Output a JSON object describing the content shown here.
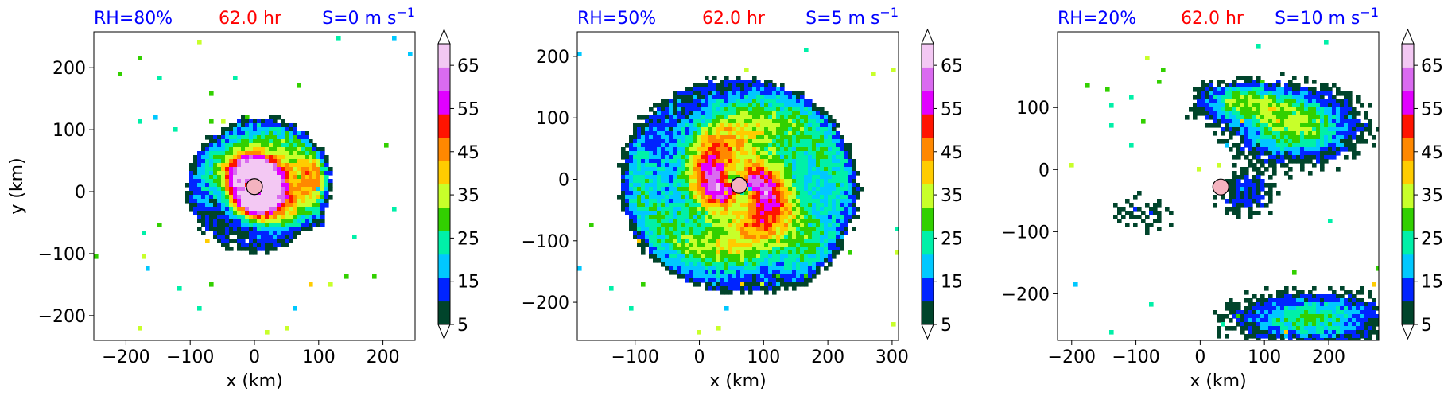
{
  "figure": {
    "cbar_colors": [
      "#00442b",
      "#0024ff",
      "#00c8ff",
      "#00f0a8",
      "#32d000",
      "#c8ff2a",
      "#ffcc00",
      "#ff8800",
      "#ff1400",
      "#e100ff",
      "#da6bf0",
      "#f3c8f3"
    ],
    "cbar_extend_color": "#ffffff",
    "center_marker_color": "#f4b3bf",
    "title_blue": "#0000ff",
    "title_red": "#ff0000"
  },
  "chart_data": [
    {
      "type": "heatmap",
      "title_left": "RH=80%",
      "title_center": "62.0 hr",
      "title_right_prefix": "S=0 m s",
      "title_right_sup": "−1",
      "xlabel": "x (km)",
      "ylabel": "y (km)",
      "xlim": [
        -250,
        250
      ],
      "ylim": [
        -240,
        258
      ],
      "xticks": [
        -200,
        -100,
        0,
        100,
        200
      ],
      "xtick_labels": [
        "−200",
        "−100",
        "0",
        "100",
        "200"
      ],
      "yticks": [
        -200,
        -100,
        0,
        100,
        200
      ],
      "ytick_labels": [
        "−200",
        "−100",
        "0",
        "100",
        "200"
      ],
      "center": [
        0,
        8
      ],
      "colorbar": {
        "levels": [
          5,
          10,
          15,
          20,
          25,
          30,
          35,
          40,
          45,
          50,
          55,
          60,
          65,
          70
        ],
        "tick_values": [
          5,
          15,
          25,
          35,
          45,
          55,
          65
        ],
        "tick_labels": [
          "5",
          "15",
          "25",
          "35",
          "45",
          "55",
          "65"
        ],
        "extend": "both"
      }
    },
    {
      "type": "heatmap",
      "title_left": "RH=50%",
      "title_center": "62.0 hr",
      "title_right_prefix": "S=5 m s",
      "title_right_sup": "−1",
      "xlabel": "x (km)",
      "ylabel": "",
      "xlim": [
        -190,
        310
      ],
      "ylim": [
        -262,
        240
      ],
      "xticks": [
        -100,
        0,
        100,
        200,
        300
      ],
      "xtick_labels": [
        "−100",
        "0",
        "100",
        "200",
        "300"
      ],
      "yticks": [
        -200,
        -100,
        0,
        100,
        200
      ],
      "ytick_labels": [
        "−200",
        "−100",
        "0",
        "100",
        "200"
      ],
      "center": [
        62,
        -10
      ],
      "colorbar": {
        "levels": [
          5,
          10,
          15,
          20,
          25,
          30,
          35,
          40,
          45,
          50,
          55,
          60,
          65,
          70
        ],
        "tick_values": [
          5,
          15,
          25,
          35,
          45,
          55,
          65
        ],
        "tick_labels": [
          "5",
          "15",
          "25",
          "35",
          "45",
          "55",
          "65"
        ],
        "extend": "both"
      }
    },
    {
      "type": "heatmap",
      "title_left": "RH=20%",
      "title_center": "62.0 hr",
      "title_right_prefix": "S=10 m s",
      "title_right_sup": "−1",
      "xlabel": "x (km)",
      "ylabel": "",
      "xlim": [
        -222,
        278
      ],
      "ylim": [
        -275,
        222
      ],
      "xticks": [
        -200,
        -100,
        0,
        100,
        200
      ],
      "xtick_labels": [
        "−200",
        "−100",
        "0",
        "100",
        "200"
      ],
      "yticks": [
        -200,
        -100,
        0,
        100
      ],
      "ytick_labels": [
        "−200",
        "−100",
        "0",
        "100"
      ],
      "center": [
        32,
        -28
      ],
      "colorbar": {
        "levels": [
          5,
          10,
          15,
          20,
          25,
          30,
          35,
          40,
          45,
          50,
          55,
          60,
          65,
          70
        ],
        "tick_values": [
          5,
          15,
          25,
          35,
          45,
          55,
          65
        ],
        "tick_labels": [
          "5",
          "15",
          "25",
          "35",
          "45",
          "55",
          "65"
        ],
        "extend": "both"
      }
    }
  ]
}
